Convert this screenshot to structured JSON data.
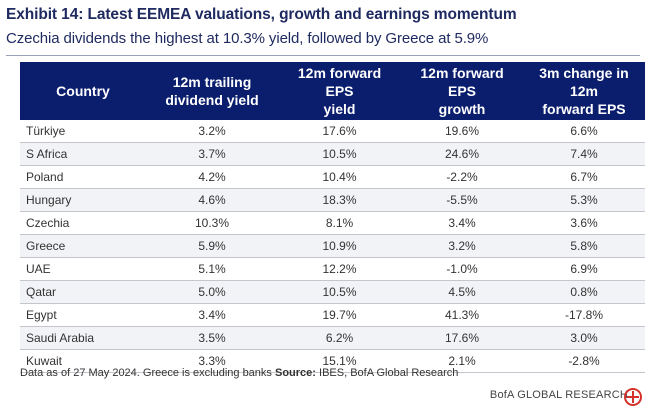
{
  "exhibit": {
    "title": "Exhibit 14: Latest EEMEA valuations, growth and earnings momentum",
    "subtitle": "Czechia dividends the highest at 10.3% yield, followed by Greece at 5.9%"
  },
  "table": {
    "headers": [
      "Country",
      "12m trailing dividend yield",
      "12m forward EPS yield",
      "12m forward EPS growth",
      "3m change in 12m forward EPS"
    ],
    "header_lines": [
      [
        "Country"
      ],
      [
        "12m trailing",
        "dividend yield"
      ],
      [
        "12m forward EPS",
        "yield"
      ],
      [
        "12m forward EPS",
        "growth"
      ],
      [
        "3m change in 12m",
        "forward EPS"
      ]
    ],
    "rows": [
      [
        "Türkiye",
        "3.2%",
        "17.6%",
        "19.6%",
        "6.6%"
      ],
      [
        "S Africa",
        "3.7%",
        "10.5%",
        "24.6%",
        "7.4%"
      ],
      [
        "Poland",
        "4.2%",
        "10.4%",
        "-2.2%",
        "6.7%"
      ],
      [
        "Hungary",
        "4.6%",
        "18.3%",
        "-5.5%",
        "5.3%"
      ],
      [
        "Czechia",
        "10.3%",
        "8.1%",
        "3.4%",
        "3.6%"
      ],
      [
        "Greece",
        "5.9%",
        "10.9%",
        "3.2%",
        "5.8%"
      ],
      [
        "UAE",
        "5.1%",
        "12.2%",
        "-1.0%",
        "6.9%"
      ],
      [
        "Qatar",
        "5.0%",
        "10.5%",
        "4.5%",
        "0.8%"
      ],
      [
        "Egypt",
        "3.4%",
        "19.7%",
        "41.3%",
        "-17.8%"
      ],
      [
        "Saudi Arabia",
        "3.5%",
        "6.2%",
        "17.6%",
        "3.0%"
      ],
      [
        "Kuwait",
        "3.3%",
        "15.1%",
        "2.1%",
        "-2.8%"
      ]
    ]
  },
  "footnote": {
    "note": "Data as of 27 May 2024. Greece is excluding banks ",
    "source_label": "Source:",
    "source_text": " IBES, BofA Global Research"
  },
  "brand": {
    "name": "BofA GLOBAL RESEARCH",
    "logo_icon": "bofa-flag-logo-icon"
  },
  "colors": {
    "header_bg": "#0b1e6e",
    "title": "#1f2a60",
    "logo_red": "#d5312b"
  }
}
